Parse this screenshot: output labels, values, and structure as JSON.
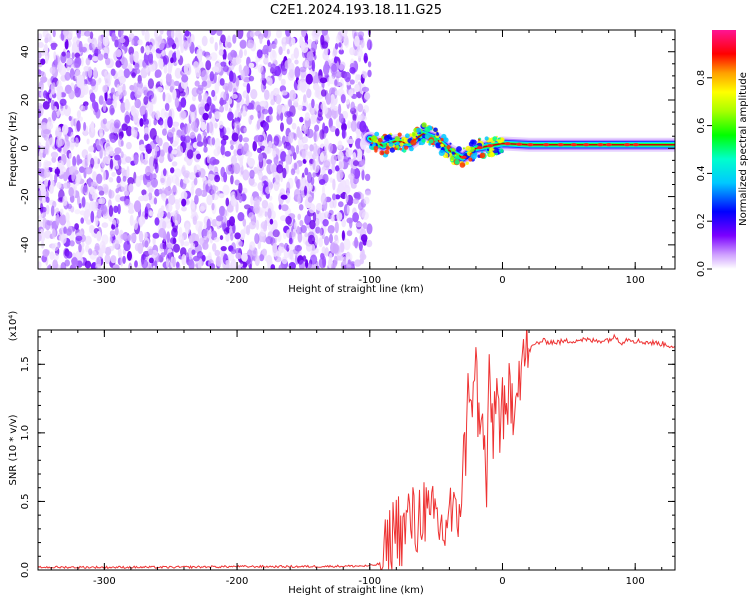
{
  "title": "C2E1.2024.193.18.11.G25",
  "chart_data": [
    {
      "type": "heatmap",
      "xlabel": "Height of straight line (km)",
      "ylabel": "Frequency (Hz)",
      "xlim": [
        -350,
        130
      ],
      "ylim": [
        -50,
        49
      ],
      "xticks": [
        -300,
        -200,
        -100,
        0,
        100
      ],
      "yticks": [
        -40,
        -20,
        0,
        20,
        40
      ],
      "noise_region": {
        "x_range": [
          -350,
          -100
        ],
        "freq_range": [
          -50,
          49
        ],
        "mean_amplitude": 0.25
      },
      "signal_ridge": [
        {
          "x": -100,
          "freq": 4
        },
        {
          "x": -90,
          "freq": 1
        },
        {
          "x": -80,
          "freq": 3
        },
        {
          "x": -70,
          "freq": 2
        },
        {
          "x": -60,
          "freq": 6
        },
        {
          "x": -50,
          "freq": 4
        },
        {
          "x": -40,
          "freq": -1
        },
        {
          "x": -30,
          "freq": -4
        },
        {
          "x": -20,
          "freq": 0
        },
        {
          "x": -10,
          "freq": 1
        },
        {
          "x": 0,
          "freq": 2
        },
        {
          "x": 20,
          "freq": 1.5
        },
        {
          "x": 50,
          "freq": 1.5
        },
        {
          "x": 80,
          "freq": 1.5
        },
        {
          "x": 100,
          "freq": 1.5
        },
        {
          "x": 130,
          "freq": 1.5
        }
      ],
      "colorbar": {
        "label": "Normalized spectral amplitude",
        "range": [
          0,
          1
        ],
        "ticks": [
          "0.0",
          "0.2",
          "0.4",
          "0.6",
          "0.8"
        ],
        "colors": [
          "#ffffff",
          "#9a30ff",
          "#0000ff",
          "#00ffff",
          "#00ff00",
          "#ffff00",
          "#ff0000",
          "#ff1493"
        ]
      }
    },
    {
      "type": "line",
      "xlabel": "Height of straight line (km)",
      "ylabel": "SNR (10 * v/v)",
      "scale_label": "(x10⁴)",
      "xlim": [
        -350,
        130
      ],
      "ylim": [
        0,
        1.75
      ],
      "xticks": [
        -300,
        -200,
        -100,
        0,
        100
      ],
      "yticks": [
        "0.0",
        "0.5",
        "1.0",
        "1.5"
      ],
      "color": "#ee3333",
      "series": [
        {
          "x": [
            -350,
            -300,
            -250,
            -200,
            -150,
            -100,
            -90,
            -85,
            -80,
            -75,
            -70,
            -65,
            -60,
            -55,
            -50,
            -45,
            -40,
            -35,
            -30,
            -27,
            -25,
            -22,
            -20,
            -17,
            -15,
            -12,
            -10,
            -7,
            -5,
            -2,
            0,
            3,
            5,
            8,
            10,
            15,
            20,
            25,
            30,
            40,
            50,
            60,
            70,
            80,
            85,
            90,
            95,
            100,
            110,
            120,
            130
          ],
          "y": [
            0.02,
            0.02,
            0.02,
            0.025,
            0.025,
            0.03,
            0.05,
            0.2,
            0.35,
            0.25,
            0.4,
            0.3,
            0.5,
            0.3,
            0.4,
            0.25,
            0.45,
            0.3,
            0.7,
            1.0,
            1.45,
            1.2,
            1.5,
            0.9,
            1.1,
            0.6,
            1.3,
            1.0,
            1.35,
            1.1,
            1.2,
            0.95,
            1.3,
            1.25,
            1.4,
            1.55,
            1.6,
            1.65,
            1.67,
            1.66,
            1.67,
            1.68,
            1.67,
            1.68,
            1.7,
            1.66,
            1.69,
            1.67,
            1.66,
            1.65,
            1.63
          ]
        }
      ]
    }
  ]
}
